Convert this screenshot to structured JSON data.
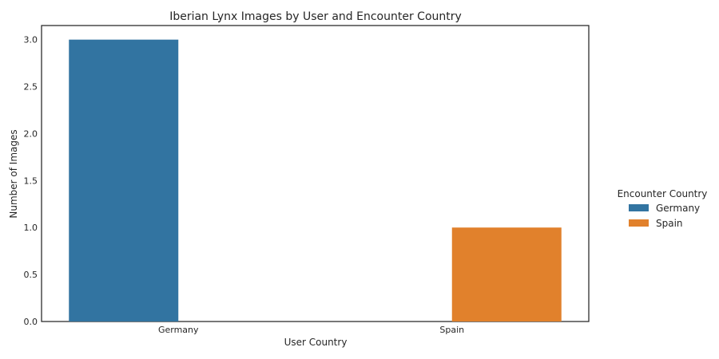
{
  "chart_data": {
    "type": "bar",
    "title": "Iberian Lynx Images by User and Encounter Country",
    "xlabel": "User Country",
    "ylabel": "Number of Images",
    "categories": [
      "Germany",
      "Spain"
    ],
    "series": [
      {
        "name": "Germany",
        "color": "#3274a1",
        "values": [
          3,
          0
        ]
      },
      {
        "name": "Spain",
        "color": "#e1812c",
        "values": [
          0,
          1
        ]
      }
    ],
    "ylim": [
      0,
      3.15
    ],
    "yticks": [
      "0.0",
      "0.5",
      "1.0",
      "1.5",
      "2.0",
      "2.5",
      "3.0"
    ],
    "grid": false,
    "legend": {
      "title": "Encounter Country",
      "placement": "outside-right"
    }
  }
}
